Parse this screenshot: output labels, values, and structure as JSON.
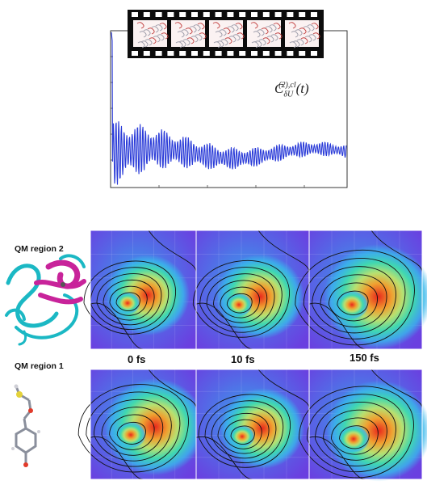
{
  "correlation_plot": {
    "label_symbol": "C",
    "label_sub": "δU",
    "label_sup": "(2),cl",
    "label_arg": "(t)",
    "line_color": "#2a3bd8"
  },
  "film_strip": {
    "frame_count": 5,
    "frame_icon": "protein-structure-thumbnail"
  },
  "regions": [
    {
      "label": "QM region 2",
      "icon": "protein-ribbon-structure"
    },
    {
      "label": "QM region 1",
      "icon": "ball-and-stick-molecule"
    }
  ],
  "time_labels": [
    "0 fs",
    "10 fs",
    "150 fs"
  ],
  "colors": {
    "map_background": "#4f4ae0",
    "map_mid": "#36a6ea",
    "peak": "#e8281c",
    "contour": "#111111",
    "protein_cyan": "#1bb8c4",
    "protein_magenta": "#c8239a"
  }
}
